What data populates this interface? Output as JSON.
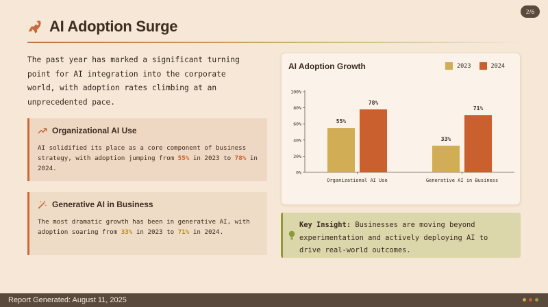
{
  "page_indicator": "2/6",
  "header": {
    "title": "AI Adoption Surge",
    "icon": "rocket-icon"
  },
  "intro": "The past year has marked a significant turning point for AI integration into the corporate world, with adoption rates climbing at an unprecedented pace.",
  "cards": [
    {
      "title": "Organizational AI Use",
      "icon": "trending-up-icon",
      "body_pre": "AI solidified its place as a core component of business strategy, with adoption jumping from ",
      "value_a": "55%",
      "body_mid": " in 2023 to ",
      "value_b": "78%",
      "body_post": " in 2024."
    },
    {
      "title": "Generative AI in Business",
      "icon": "magic-wand-icon",
      "body_pre": "The most dramatic growth has been in generative AI, with adoption soaring from ",
      "value_a": "33%",
      "body_mid": " in 2023 to ",
      "value_b": "71%",
      "body_post": " in 2024."
    }
  ],
  "insight": {
    "label": "Key Insight:",
    "text": " Businesses are moving beyond experimentation and actively deploying AI to drive real-world outcomes.",
    "icon": "lightbulb-icon"
  },
  "footer": {
    "text": "Report Generated: August 11, 2025"
  },
  "colors": {
    "accent": "#c96a3c",
    "series_2023": "#d1ad55",
    "series_2024": "#c9602e",
    "insight_border": "#8c9a3c",
    "footer_bg": "#5a4a3d",
    "footer_dots": [
      "#d9a548",
      "#c9602e",
      "#9aa347"
    ]
  },
  "chart_data": {
    "type": "bar",
    "title": "AI Adoption Growth",
    "categories": [
      "Organizational AI Use",
      "Generative AI in Business"
    ],
    "series": [
      {
        "name": "2023",
        "values": [
          55,
          33
        ],
        "labels": [
          "55%",
          "33%"
        ],
        "color": "#d1ad55"
      },
      {
        "name": "2024",
        "values": [
          78,
          71
        ],
        "labels": [
          "78%",
          "71%"
        ],
        "color": "#c9602e"
      }
    ],
    "ylim": [
      0,
      100
    ],
    "yticks": [
      0,
      20,
      40,
      60,
      80,
      100
    ],
    "ytick_labels": [
      "0%",
      "20%",
      "40%",
      "60%",
      "80%",
      "100%"
    ],
    "grid": false,
    "legend": "top-right"
  }
}
